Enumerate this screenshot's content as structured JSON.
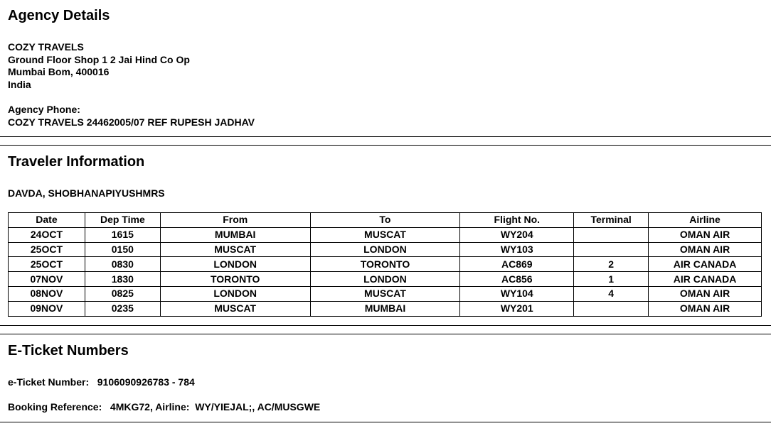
{
  "agency": {
    "title": "Agency Details",
    "name": "COZY TRAVELS",
    "address1": "Ground Floor Shop 1 2 Jai Hind Co Op",
    "address2": "Mumbai Bom, 400016",
    "country": "India",
    "phone_label": "Agency Phone:",
    "phone": "COZY TRAVELS 24462005/07 REF RUPESH JADHAV"
  },
  "traveler": {
    "title": "Traveler Information",
    "name": "DAVDA, SHOBHANAPIYUSHMRS",
    "columns": [
      "Date",
      "Dep Time",
      "From",
      "To",
      "Flight No.",
      "Terminal",
      "Airline"
    ],
    "rows": [
      [
        "24OCT",
        "1615",
        "MUMBAI",
        "MUSCAT",
        "WY204",
        "",
        "OMAN AIR"
      ],
      [
        "25OCT",
        "0150",
        "MUSCAT",
        "LONDON",
        "WY103",
        "",
        "OMAN AIR"
      ],
      [
        "25OCT",
        "0830",
        "LONDON",
        "TORONTO",
        "AC869",
        "2",
        "AIR CANADA"
      ],
      [
        "07NOV",
        "1830",
        "TORONTO",
        "LONDON",
        "AC856",
        "1",
        "AIR CANADA"
      ],
      [
        "08NOV",
        "0825",
        "LONDON",
        "MUSCAT",
        "WY104",
        "4",
        "OMAN AIR"
      ],
      [
        "09NOV",
        "0235",
        "MUSCAT",
        "MUMBAI",
        "WY201",
        "",
        "OMAN AIR"
      ]
    ]
  },
  "eticket": {
    "title": "E-Ticket Numbers",
    "ticket_line": "e-Ticket Number:   9106090926783 - 784",
    "booking_line": "Booking Reference:   4MKG72, Airline:  WY/YIEJAL;, AC/MUSGWE"
  }
}
